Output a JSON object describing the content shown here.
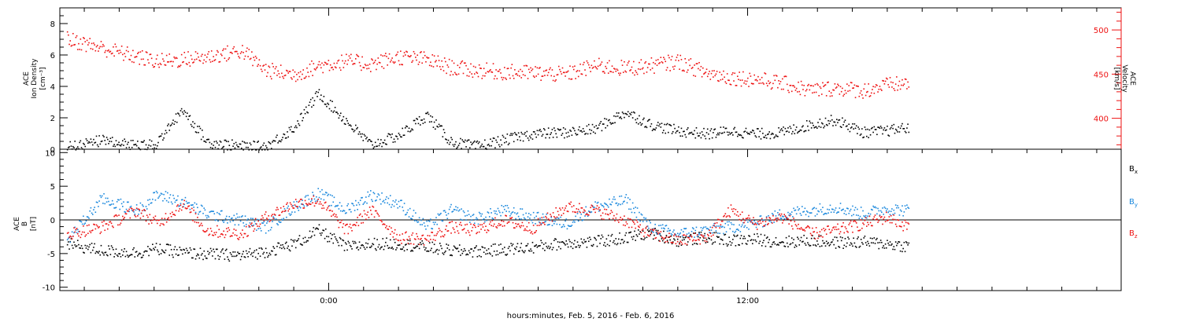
{
  "chart_data": [
    {
      "type": "scatter",
      "title": "",
      "ylabel_lines": [
        "ACE",
        "Ion Density",
        "[cm⁻³]"
      ],
      "ylabel_right_lines": [
        "ACE",
        "Velocity",
        "[km/s]"
      ],
      "ylim": [
        0,
        9
      ],
      "ylim_right": [
        365,
        525
      ],
      "yticks": [
        0,
        2,
        4,
        6,
        8
      ],
      "yticks_right": [
        400,
        450,
        500
      ],
      "grid": false,
      "colors": {
        "density": "#000000",
        "velocity": "#ee1111"
      },
      "series": [
        {
          "axis": "left",
          "x": [
            -7.5,
            -6.5,
            -5.5,
            -4.9,
            -4.2,
            -3.5,
            -2.5,
            -1.8,
            -1.0,
            -0.3,
            0.5,
            1.2,
            2.0,
            2.8,
            3.5,
            4.2,
            5.0,
            5.8,
            6.8,
            7.6,
            8.5,
            9.2,
            10.0,
            10.8,
            11.5,
            12.2,
            13.0,
            13.8,
            14.5,
            15.3,
            16.0,
            16.5
          ],
          "y": [
            0.2,
            0.6,
            0.3,
            0.4,
            2.6,
            0.5,
            0.2,
            0.2,
            1.4,
            3.6,
            1.8,
            0.3,
            0.9,
            2.2,
            0.5,
            0.2,
            0.6,
            1.0,
            1.1,
            1.3,
            2.4,
            1.6,
            1.2,
            1.0,
            1.2,
            1.0,
            1.1,
            1.6,
            1.9,
            1.1,
            1.2,
            1.4
          ]
        },
        {
          "axis": "right",
          "x": [
            -7.5,
            -6.5,
            -5.5,
            -4.9,
            -4.2,
            -3.5,
            -2.5,
            -1.8,
            -1.0,
            -0.3,
            0.5,
            1.2,
            2.0,
            2.8,
            3.5,
            4.2,
            5.0,
            5.8,
            6.8,
            7.6,
            8.5,
            9.2,
            10.0,
            10.8,
            11.5,
            12.2,
            13.0,
            13.8,
            14.5,
            15.3,
            16.0,
            16.5
          ],
          "y": [
            490,
            480,
            470,
            465,
            467,
            470,
            477,
            455,
            450,
            460,
            465,
            462,
            470,
            467,
            458,
            455,
            453,
            452,
            450,
            460,
            457,
            460,
            465,
            452,
            447,
            445,
            440,
            432,
            435,
            432,
            438,
            440
          ]
        }
      ]
    },
    {
      "type": "scatter",
      "title": "",
      "ylabel_lines": [
        "ACE",
        "B",
        "[nT]"
      ],
      "ylim": [
        -10.5,
        10.5
      ],
      "yticks": [
        -10,
        -5,
        0,
        5,
        10
      ],
      "grid": false,
      "zero_line": true,
      "xlabel": "hours:minutes, Feb.  5, 2016 - Feb.  6, 2016",
      "xlim": [
        -7.7,
        22.7
      ],
      "xticks": [
        0,
        12
      ],
      "xtick_labels": [
        "0:00",
        "12:00"
      ],
      "legend_position": "right",
      "series": [
        {
          "name": "Bx",
          "color": "#000000",
          "x": [
            -7.5,
            -6.5,
            -5.5,
            -4.9,
            -4.2,
            -3.5,
            -2.5,
            -1.8,
            -1.0,
            -0.3,
            0.5,
            1.2,
            2.0,
            2.8,
            3.5,
            4.2,
            5.0,
            5.8,
            6.8,
            7.6,
            8.5,
            9.2,
            10.0,
            10.8,
            11.5,
            12.2,
            13.0,
            13.8,
            14.5,
            15.3,
            16.0,
            16.5
          ],
          "y": [
            -3.5,
            -4.5,
            -4.8,
            -4.2,
            -4.8,
            -5.0,
            -5.2,
            -4.6,
            -3.5,
            -1.5,
            -4.0,
            -3.5,
            -3.5,
            -4.0,
            -4.5,
            -4.6,
            -4.3,
            -4.0,
            -3.3,
            -3.2,
            -2.6,
            -1.8,
            -3.0,
            -2.5,
            -3.0,
            -2.8,
            -3.2,
            -3.0,
            -3.3,
            -3.2,
            -3.5,
            -3.8
          ]
        },
        {
          "name": "By",
          "color": "#1a88dd",
          "x": [
            -7.5,
            -6.5,
            -5.5,
            -4.9,
            -4.2,
            -3.5,
            -2.5,
            -1.8,
            -1.0,
            -0.3,
            0.5,
            1.2,
            2.0,
            2.8,
            3.5,
            4.2,
            5.0,
            5.8,
            6.8,
            7.6,
            8.5,
            9.2,
            10.0,
            10.8,
            11.5,
            12.2,
            13.0,
            13.8,
            14.5,
            15.3,
            16.0,
            16.5
          ],
          "y": [
            -3.0,
            3.2,
            1.5,
            3.8,
            2.8,
            1.0,
            0.0,
            -1.0,
            2.0,
            4.0,
            1.5,
            3.8,
            2.5,
            -1.0,
            1.5,
            0.2,
            1.5,
            0.5,
            -0.5,
            2.0,
            3.0,
            -1.0,
            -2.0,
            -1.5,
            -1.0,
            -0.5,
            1.0,
            1.5,
            2.0,
            1.0,
            1.8,
            1.5
          ]
        },
        {
          "name": "Bz",
          "color": "#ee1111",
          "x": [
            -7.5,
            -6.5,
            -5.5,
            -4.9,
            -4.2,
            -3.5,
            -2.5,
            -1.8,
            -1.0,
            -0.3,
            0.5,
            1.2,
            2.0,
            2.8,
            3.5,
            4.2,
            5.0,
            5.8,
            6.8,
            7.6,
            8.5,
            9.2,
            10.0,
            10.8,
            11.5,
            12.2,
            13.0,
            13.8,
            14.5,
            15.3,
            16.0,
            16.5
          ],
          "y": [
            -2.0,
            -1.0,
            1.5,
            -0.5,
            2.5,
            -1.5,
            -2.0,
            0.5,
            2.5,
            3.0,
            -1.5,
            1.5,
            -2.5,
            -2.8,
            -1.0,
            -1.5,
            0.0,
            -1.2,
            2.0,
            1.5,
            0.0,
            -2.0,
            -3.0,
            -2.5,
            1.5,
            -0.5,
            0.5,
            -2.0,
            -1.5,
            -0.5,
            0.5,
            -0.8
          ]
        }
      ]
    }
  ]
}
